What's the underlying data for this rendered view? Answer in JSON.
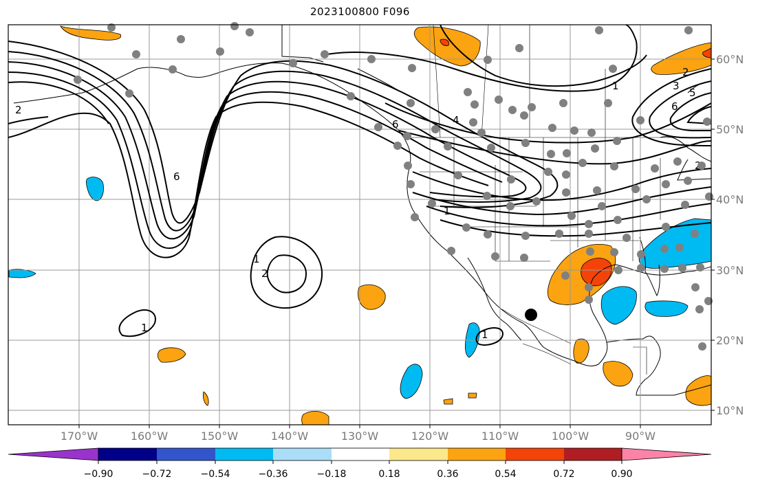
{
  "title": "2023100800 F096",
  "map": {
    "lon_labels": [
      "170°W",
      "160°W",
      "150°W",
      "140°W",
      "130°W",
      "120°W",
      "110°W",
      "100°W",
      "90°W"
    ],
    "lat_labels": [
      "60°N",
      "50°N",
      "40°N",
      "30°N",
      "20°N",
      "10°N"
    ],
    "contour_labels": [
      "2",
      "6",
      "1",
      "2",
      "1",
      "6",
      "1",
      "1",
      "2",
      "3",
      "5",
      "6",
      "2",
      "4",
      "1"
    ],
    "gridline_color": "#999999"
  },
  "colorbar": {
    "ticks": [
      "−0.90",
      "−0.72",
      "−0.54",
      "−0.36",
      "−0.18",
      "0.18",
      "0.36",
      "0.54",
      "0.72",
      "0.90"
    ],
    "colors": [
      "#9933cc",
      "#000088",
      "#3355cc",
      "#00bbf2",
      "#aaddf7",
      "#ffffff",
      "#fbe88a",
      "#fba310",
      "#f44309",
      "#b01e23",
      "#fc83a8"
    ]
  }
}
